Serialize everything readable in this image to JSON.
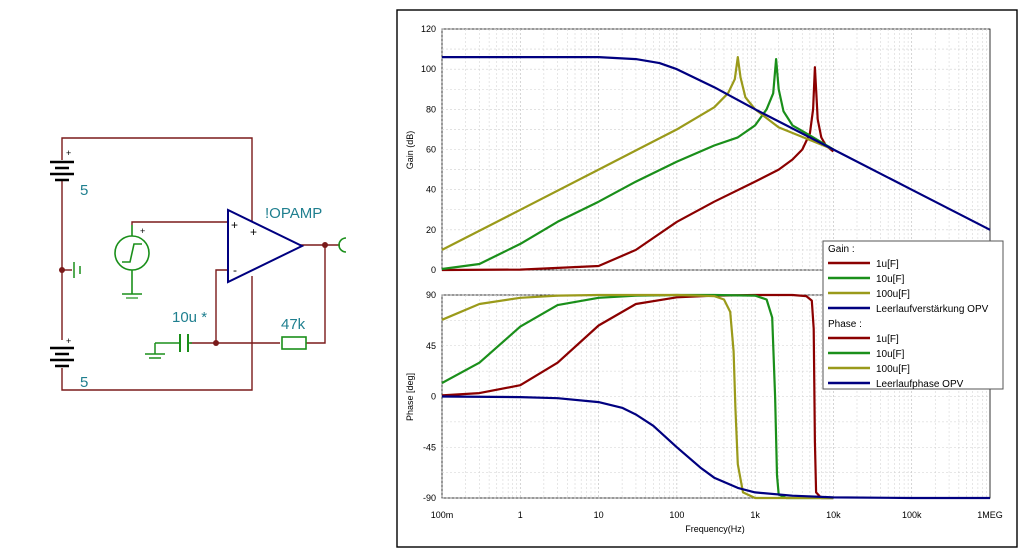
{
  "schematic": {
    "battery_top_label": "5",
    "battery_bottom_label": "5",
    "opamp_label": "!OPAMP",
    "capacitor_label": "10u *",
    "resistor_label": "47k",
    "plus_sign": "+",
    "minus_sign": "-"
  },
  "chart_data": [
    {
      "type": "line",
      "panel": "gain",
      "ylabel": "Gain (dB)",
      "ylim": [
        0,
        120
      ],
      "yticks": [
        "0",
        "20",
        "40",
        "60",
        "80",
        "100",
        "120"
      ],
      "xscale": "log",
      "xlim": [
        0.1,
        1000000
      ],
      "grid": true,
      "series": [
        {
          "name": "1u[F]",
          "color": "#8b0000",
          "x": [
            0.1,
            1,
            10,
            30,
            100,
            300,
            1000,
            2000,
            3000,
            4000,
            5000,
            5500,
            5800,
            6000,
            6300,
            7000,
            8000,
            10000
          ],
          "y": [
            0,
            0.2,
            2,
            10,
            24,
            34,
            44,
            50,
            55,
            60,
            68,
            80,
            101,
            90,
            75,
            66,
            62,
            59
          ]
        },
        {
          "name": "10u[F]",
          "color": "#1a8f1a",
          "x": [
            0.1,
            0.3,
            1,
            3,
            10,
            30,
            100,
            300,
            600,
            1000,
            1400,
            1700,
            1850,
            2000,
            2300,
            3000,
            5000,
            10000
          ],
          "y": [
            0.5,
            3,
            13,
            24,
            34,
            44,
            54,
            62,
            66,
            72,
            80,
            88,
            105,
            90,
            79,
            72,
            67,
            60
          ]
        },
        {
          "name": "100u[F]",
          "color": "#9a9a1a",
          "x": [
            0.1,
            1,
            10,
            100,
            300,
            450,
            550,
            600,
            650,
            750,
            1000,
            2000,
            10000
          ],
          "y": [
            10,
            30,
            50,
            70,
            81,
            88,
            95,
            106,
            96,
            86,
            80,
            71,
            60
          ]
        },
        {
          "name": "Leerlaufverstärkung OPV",
          "color": "#000080",
          "x": [
            0.1,
            1,
            10,
            30,
            60,
            100,
            300,
            1000,
            10000,
            100000,
            1000000
          ],
          "y": [
            106,
            106,
            106,
            105,
            103,
            100,
            91,
            80,
            60,
            40,
            20
          ]
        }
      ]
    },
    {
      "type": "line",
      "panel": "phase",
      "ylabel": "Phase [deg]",
      "xlabel": "Frequency(Hz)",
      "ylim": [
        -90,
        90
      ],
      "yticks": [
        "-90",
        "-45",
        "0",
        "45",
        "90"
      ],
      "xticks": [
        "100m",
        "1",
        "10",
        "100",
        "1k",
        "10k",
        "100k",
        "1MEG"
      ],
      "xscale": "log",
      "xlim": [
        0.1,
        1000000
      ],
      "grid": true,
      "series": [
        {
          "name": "1u[F]",
          "color": "#8b0000",
          "x": [
            0.1,
            0.3,
            1,
            3,
            10,
            30,
            100,
            300,
            1000,
            3000,
            4500,
            5300,
            5600,
            5800,
            6000,
            7000,
            10000
          ],
          "y": [
            1,
            3,
            10,
            30,
            63,
            82,
            88,
            89.5,
            90,
            90,
            89,
            85,
            60,
            -40,
            -85,
            -90,
            -90
          ]
        },
        {
          "name": "10u[F]",
          "color": "#1a8f1a",
          "x": [
            0.1,
            0.3,
            1,
            3,
            10,
            30,
            100,
            300,
            1000,
            1400,
            1650,
            1800,
            1900,
            2000,
            2500,
            10000
          ],
          "y": [
            12,
            30,
            62,
            81,
            87.5,
            89.5,
            90,
            90,
            89.5,
            86,
            70,
            0,
            -70,
            -87,
            -90,
            -90
          ]
        },
        {
          "name": "100u[F]",
          "color": "#9a9a1a",
          "x": [
            0.1,
            0.3,
            1,
            3,
            10,
            30,
            100,
            300,
            400,
            480,
            530,
            560,
            600,
            700,
            1000,
            10000
          ],
          "y": [
            68,
            82,
            87.5,
            89.5,
            90,
            90,
            90,
            89,
            86,
            75,
            40,
            -10,
            -60,
            -85,
            -90,
            -90
          ]
        },
        {
          "name": "Leerlaufphase OPV",
          "color": "#000080",
          "x": [
            0.1,
            1,
            3,
            10,
            20,
            30,
            50,
            100,
            200,
            300,
            600,
            1000,
            3000,
            10000,
            100000,
            1000000
          ],
          "y": [
            0,
            -0.5,
            -1.5,
            -5,
            -10,
            -16,
            -26,
            -45,
            -63,
            -72,
            -81,
            -85,
            -88,
            -89.5,
            -90,
            -90
          ]
        }
      ]
    }
  ],
  "legend": {
    "gain_header": "Gain :",
    "phase_header": "Phase :",
    "gain_items": [
      "1u[F]",
      "10u[F]",
      "100u[F]",
      "Leerlaufverstärkung OPV"
    ],
    "phase_items": [
      "1u[F]",
      "10u[F]",
      "100u[F]",
      "Leerlaufphase OPV"
    ],
    "colors": [
      "#8b0000",
      "#1a8f1a",
      "#9a9a1a",
      "#000080"
    ],
    "placement": "right-middle"
  },
  "colors": {
    "wire": "#7a1a1a",
    "component": "#1a8f1a",
    "opamp": "#000080",
    "label_text": "#1f7f8f"
  }
}
